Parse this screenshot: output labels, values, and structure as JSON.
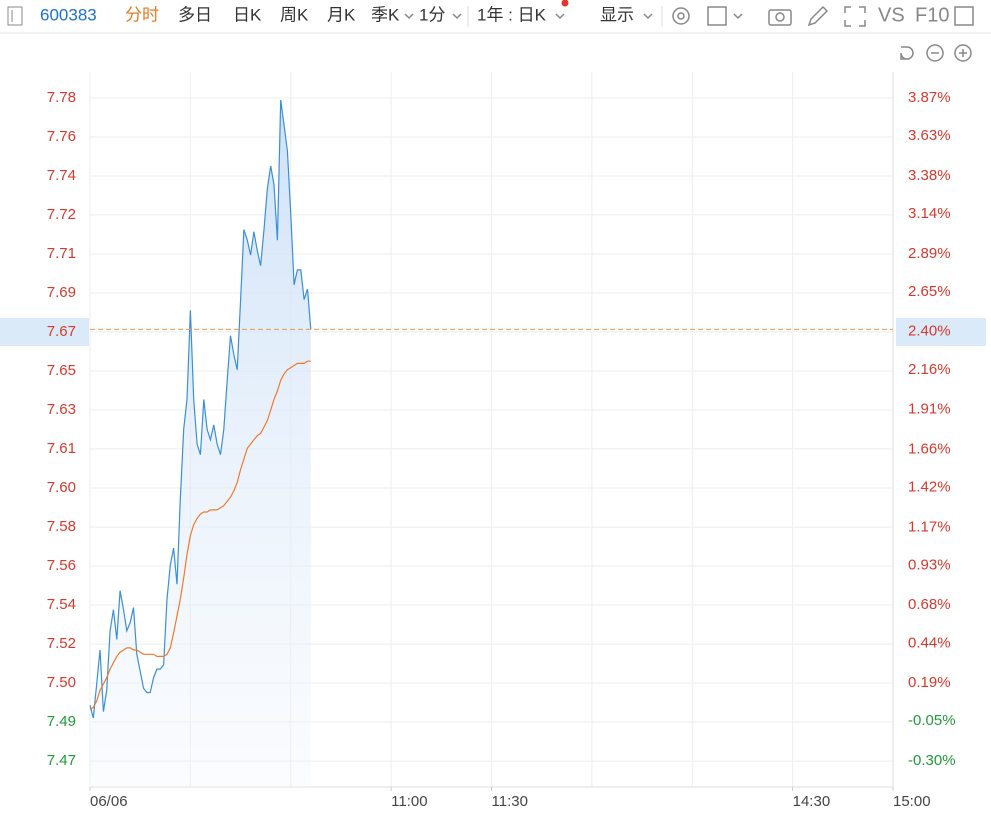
{
  "toolbar": {
    "code": "600383",
    "tabs": [
      "分时",
      "多日",
      "日K",
      "周K",
      "月K",
      "季K"
    ],
    "interval": "1分",
    "range": "1年 : 日K",
    "display": "显示",
    "vs": "VS",
    "f10": "F10"
  },
  "chart_data": {
    "type": "line",
    "x": [
      "09:30",
      "09:31",
      "09:32",
      "09:33",
      "09:34",
      "09:35",
      "09:36",
      "09:37",
      "09:38",
      "09:39",
      "09:40",
      "09:41",
      "09:42",
      "09:43",
      "09:44",
      "09:45",
      "09:46",
      "09:47",
      "09:48",
      "09:49",
      "09:50",
      "09:51",
      "09:52",
      "09:53",
      "09:54",
      "09:55",
      "09:56",
      "09:57",
      "09:58",
      "09:59",
      "10:00",
      "10:01",
      "10:02",
      "10:03",
      "10:04",
      "10:05",
      "10:06",
      "10:07",
      "10:08",
      "10:09",
      "10:10",
      "10:11",
      "10:12",
      "10:13",
      "10:14",
      "10:15",
      "10:16",
      "10:17",
      "10:18",
      "10:19",
      "10:20",
      "10:21",
      "10:22",
      "10:23",
      "10:24",
      "10:25",
      "10:26",
      "10:27",
      "10:28",
      "10:29",
      "10:30",
      "10:31",
      "10:32",
      "10:33",
      "10:34",
      "10:35",
      "10:36"
    ],
    "series": [
      {
        "color": "#3b8fd6",
        "values": [
          7.494,
          7.488,
          7.504,
          7.52,
          7.491,
          7.501,
          7.529,
          7.539,
          7.525,
          7.548,
          7.539,
          7.529,
          7.533,
          7.54,
          7.518,
          7.51,
          7.502,
          7.5,
          7.5,
          7.507,
          7.511,
          7.511,
          7.513,
          7.544,
          7.56,
          7.568,
          7.551,
          7.591,
          7.624,
          7.638,
          7.68,
          7.638,
          7.617,
          7.612,
          7.638,
          7.624,
          7.619,
          7.626,
          7.617,
          7.612,
          7.624,
          7.647,
          7.668,
          7.659,
          7.652,
          7.685,
          7.718,
          7.713,
          7.706,
          7.717,
          7.708,
          7.701,
          7.718,
          7.737,
          7.748,
          7.739,
          7.713,
          7.779,
          7.767,
          7.755,
          7.725,
          7.692,
          7.699,
          7.699,
          7.685,
          7.69,
          7.671
        ]
      },
      {
        "color": "#f07a2c",
        "values": [
          7.492,
          7.493,
          7.496,
          7.501,
          7.504,
          7.507,
          7.511,
          7.514,
          7.517,
          7.519,
          7.52,
          7.521,
          7.521,
          7.52,
          7.52,
          7.519,
          7.518,
          7.518,
          7.518,
          7.518,
          7.517,
          7.517,
          7.517,
          7.518,
          7.521,
          7.528,
          7.536,
          7.544,
          7.554,
          7.565,
          7.574,
          7.579,
          7.582,
          7.584,
          7.585,
          7.585,
          7.586,
          7.586,
          7.586,
          7.587,
          7.588,
          7.59,
          7.592,
          7.595,
          7.599,
          7.605,
          7.61,
          7.615,
          7.617,
          7.619,
          7.621,
          7.622,
          7.625,
          7.628,
          7.633,
          7.638,
          7.642,
          7.647,
          7.65,
          7.652,
          7.653,
          7.654,
          7.655,
          7.655,
          7.655,
          7.656,
          7.656
        ]
      }
    ],
    "xlim": [
      "09:30",
      "15:00"
    ],
    "xticks": [
      {
        "value": "09:30",
        "label": "06/06"
      },
      "11:00",
      "11:30",
      "14:30",
      "15:00"
    ],
    "ylim": [
      7.4555,
      7.7922
    ],
    "yticks": [
      {
        "value": 7.4677,
        "label": "7.47"
      },
      {
        "value": 7.4861,
        "label": "7.49"
      },
      {
        "value": 7.5045,
        "label": "7.50"
      },
      {
        "value": 7.5228,
        "label": "7.52"
      },
      {
        "value": 7.5412,
        "label": "7.54"
      },
      {
        "value": 7.5596,
        "label": "7.56"
      },
      {
        "value": 7.5779,
        "label": "7.58"
      },
      {
        "value": 7.5963,
        "label": "7.60"
      },
      {
        "value": 7.6147,
        "label": "7.61"
      },
      {
        "value": 7.633,
        "label": "7.63"
      },
      {
        "value": 7.6514,
        "label": "7.65"
      },
      {
        "value": 7.6698,
        "label": "7.67"
      },
      {
        "value": 7.6881,
        "label": "7.69"
      },
      {
        "value": 7.7065,
        "label": "7.71"
      },
      {
        "value": 7.7249,
        "label": "7.72"
      },
      {
        "value": 7.7432,
        "label": "7.74"
      },
      {
        "value": 7.7616,
        "label": "7.76"
      },
      {
        "value": 7.78,
        "label": "7.78"
      }
    ],
    "y2lim": [
      -0.4635,
      4.0335
    ],
    "y2ticks": [
      {
        "value": -0.3,
        "label": "-0.30%"
      },
      {
        "value": -0.05,
        "label": "-0.05%"
      },
      {
        "value": 0.19,
        "label": "0.19%"
      },
      {
        "value": 0.44,
        "label": "0.44%"
      },
      {
        "value": 0.68,
        "label": "0.68%"
      },
      {
        "value": 0.93,
        "label": "0.93%"
      },
      {
        "value": 1.17,
        "label": "1.17%"
      },
      {
        "value": 1.42,
        "label": "1.42%"
      },
      {
        "value": 1.66,
        "label": "1.66%"
      },
      {
        "value": 1.91,
        "label": "1.91%"
      },
      {
        "value": 2.16,
        "label": "2.16%"
      },
      {
        "value": 2.4,
        "label": "2.40%"
      },
      {
        "value": 2.65,
        "label": "2.65%"
      },
      {
        "value": 2.89,
        "label": "2.89%"
      },
      {
        "value": 3.14,
        "label": "3.14%"
      },
      {
        "value": 3.38,
        "label": "3.38%"
      },
      {
        "value": 3.63,
        "label": "3.63%"
      },
      {
        "value": 3.87,
        "label": "3.87%"
      }
    ],
    "grid": true
  }
}
